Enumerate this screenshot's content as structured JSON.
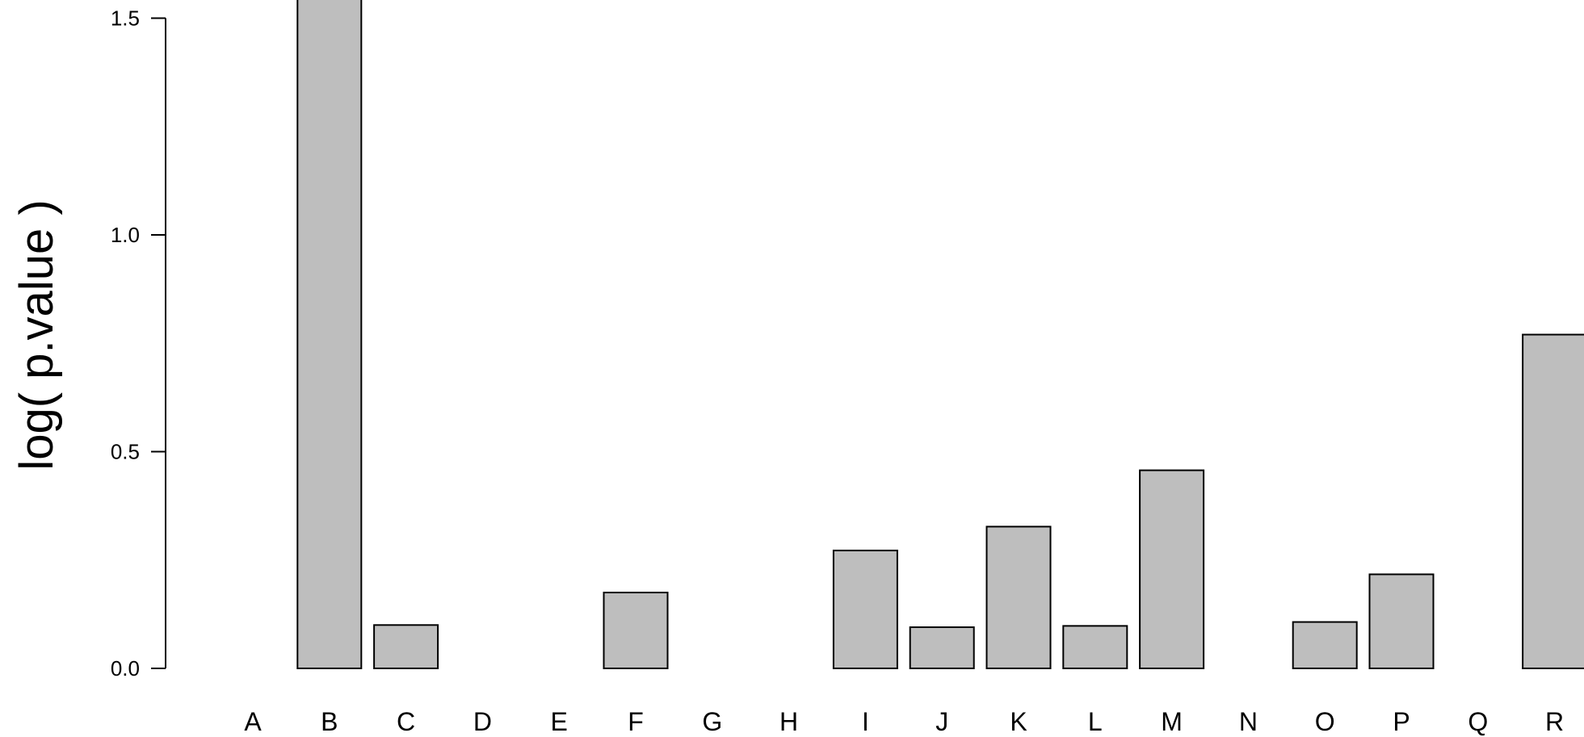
{
  "chart_data": {
    "type": "bar",
    "title": "",
    "xlabel": "",
    "ylabel": "log( p.value )",
    "categories": [
      "A",
      "B",
      "C",
      "D",
      "E",
      "F",
      "G",
      "H",
      "I",
      "J",
      "K",
      "L",
      "M",
      "N",
      "O",
      "P",
      "Q",
      "R"
    ],
    "values": [
      0.0,
      1.6,
      0.1,
      0.0,
      0.0,
      0.175,
      0.0,
      0.0,
      0.272,
      0.095,
      0.327,
      0.098,
      0.457,
      0.0,
      0.107,
      0.217,
      0.0,
      0.77
    ],
    "ylim": [
      0,
      1.5
    ],
    "yticks": [
      "0.0",
      "0.5",
      "1.0",
      "1.5"
    ],
    "bar_color": "#bebebe",
    "bar_stroke": "#000000",
    "grid": false,
    "legend": "none"
  }
}
